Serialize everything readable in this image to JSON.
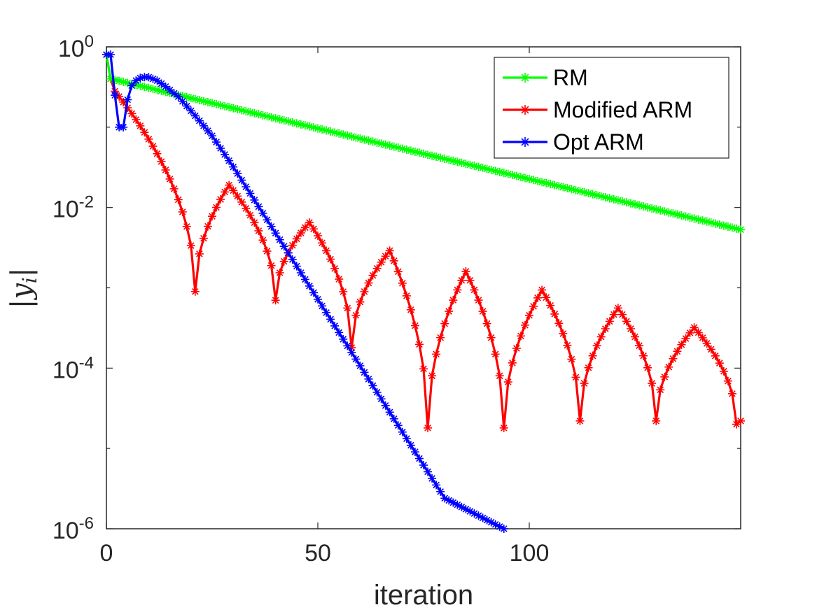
{
  "chart_data": {
    "type": "line",
    "xlabel": "iteration",
    "ylabel": "|y_i|",
    "ylabel_parts": {
      "bar_left": "|",
      "var": "y",
      "sub": "i",
      "bar_right": "|"
    },
    "yscale": "log",
    "xlim": [
      0,
      150
    ],
    "ylim_exp": [
      -6,
      0
    ],
    "x_ticks": [
      {
        "value": 0,
        "label": "0"
      },
      {
        "value": 50,
        "label": "50"
      },
      {
        "value": 100,
        "label": "100"
      }
    ],
    "y_ticks": [
      {
        "exp": 0,
        "base": "10",
        "sup": "0"
      },
      {
        "exp": -2,
        "base": "10",
        "sup": "-2"
      },
      {
        "exp": -4,
        "base": "10",
        "sup": "-4"
      },
      {
        "exp": -6,
        "base": "10",
        "sup": "-6"
      }
    ],
    "legend_position": "top-right",
    "series": [
      {
        "name": "RM",
        "color": "#00ff00",
        "marker": "star",
        "model": "exp",
        "points": [
          [
            0,
            0.8
          ],
          [
            1,
            0.4
          ],
          [
            150,
            0.0053
          ]
        ]
      },
      {
        "name": "Modified ARM",
        "color": "#ff0000",
        "marker": "star",
        "model": "oscillating",
        "points": [
          [
            0,
            0.8
          ],
          [
            1,
            0.4
          ],
          [
            2,
            0.28
          ],
          [
            150,
            2.2e-05
          ]
        ],
        "dips": [
          [
            21,
            0.0009
          ],
          [
            40,
            0.0007
          ],
          [
            58,
            0.00018
          ],
          [
            76,
            1.8e-05
          ],
          [
            94,
            1.8e-05
          ],
          [
            112,
            2.2e-05
          ],
          [
            130,
            2.2e-05
          ],
          [
            149,
            2e-05
          ]
        ],
        "peaks": [
          [
            29,
            0.019
          ],
          [
            48,
            0.0065
          ],
          [
            67,
            0.0029
          ],
          [
            85,
            0.0016
          ],
          [
            103,
            0.00094
          ],
          [
            121,
            0.00056
          ],
          [
            139,
            0.00032
          ]
        ]
      },
      {
        "name": "Opt ARM",
        "color": "#0000ff",
        "marker": "star",
        "model": "piecewise",
        "points": [
          [
            0,
            0.8
          ],
          [
            1,
            0.8
          ],
          [
            2,
            0.25
          ],
          [
            3,
            0.1
          ],
          [
            4,
            0.1
          ],
          [
            5,
            0.22
          ],
          [
            6,
            0.33
          ],
          [
            7,
            0.38
          ],
          [
            8,
            0.41
          ],
          [
            9,
            0.42
          ],
          [
            10,
            0.42
          ],
          [
            12,
            0.38
          ],
          [
            14,
            0.32
          ],
          [
            17,
            0.24
          ],
          [
            20,
            0.16
          ],
          [
            25,
            0.078
          ],
          [
            30,
            0.032
          ],
          [
            40,
            0.0048
          ],
          [
            50,
            0.00072
          ],
          [
            60,
            0.000107
          ],
          [
            70,
            1.6e-05
          ],
          [
            80,
            2.4e-06
          ],
          [
            94,
            1e-06
          ]
        ]
      }
    ]
  }
}
